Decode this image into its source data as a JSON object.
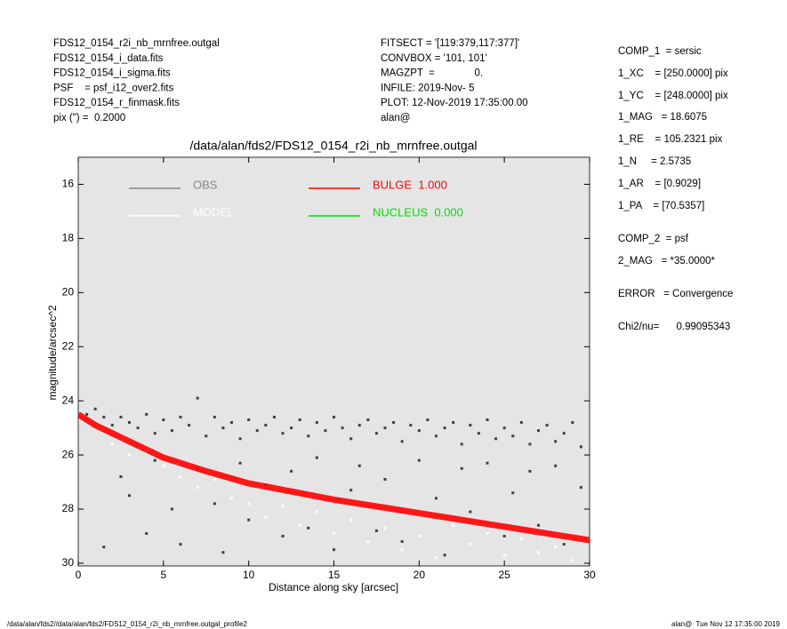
{
  "header": {
    "left": [
      "FDS12_0154_r2i_nb_mrnfree.outgal",
      "FDS12_0154_i_data.fits",
      "FDS12_0154_i_sigma.fits",
      "PSF    = psf_i12_over2.fits",
      "FDS12_0154_r_finmask.fits",
      "pix (\") =  0.2000"
    ],
    "middle": [
      "FITSECT = '[119:379,117:377]'",
      "CONVBOX = '101, 101'",
      "MAGZPT  =              0.",
      "INFILE: 2019-Nov- 5",
      "PLOT: 12-Nov-2019 17:35:00.00",
      "alan@"
    ],
    "right": [
      "COMP_1  = sersic",
      "1_XC    = [250.0000] pix",
      "1_YC    = [248.0000] pix",
      "1_MAG   = 18.6075",
      "1_RE    = 105.2321 pix",
      "1_N     = 2.5735",
      "1_AR    = [0.9029]",
      "1_PA    = [70.5357]",
      "COMP_2  = psf",
      "2_MAG   = *35.0000*",
      "ERROR   = Convergence",
      "Chi2/nu=      0.99095343"
    ]
  },
  "chart_data": {
    "type": "scatter",
    "title": "/data/alan/fds2/FDS12_0154_r2i_nb_mrnfree.outgal",
    "x_label": "Distance along sky [arcsec]",
    "y_label": "magnitude/arcsec^2",
    "background": "#e5e5e5",
    "legend": "upper left",
    "xlim": [
      0,
      30
    ],
    "ylim": [
      30.1,
      15.0
    ],
    "xticks": [
      0,
      5,
      10,
      15,
      20,
      25,
      30
    ],
    "yticks": [
      16,
      18,
      20,
      22,
      24,
      26,
      28,
      30
    ],
    "series": [
      {
        "name": "OBS",
        "color": "#888888",
        "marker_color": "#404040",
        "style": "points",
        "x": [
          0.5,
          1,
          1.5,
          2,
          2.5,
          3,
          3.5,
          4,
          4.5,
          5,
          5.5,
          6,
          6.5,
          7,
          7.5,
          8,
          8.5,
          9,
          9.5,
          10,
          10.5,
          11,
          11.5,
          12,
          12.5,
          13,
          13.5,
          14,
          14.5,
          15,
          15.5,
          16,
          16.5,
          17,
          17.5,
          18,
          18.5,
          19,
          19.5,
          20,
          20.5,
          21,
          21.5,
          22,
          22.5,
          23,
          23.5,
          24,
          24.5,
          25,
          25.5,
          26,
          26.5,
          27,
          27.5,
          28,
          28.5,
          29,
          29.5,
          1.5,
          2.5,
          3,
          4,
          4.5,
          5.5,
          6,
          7,
          8,
          8.5,
          9.5,
          10,
          11,
          12,
          12.5,
          13.5,
          14,
          15,
          16,
          16.5,
          17.5,
          18,
          19,
          20,
          21,
          21.5,
          22.5,
          23,
          24,
          25,
          25.5,
          26.5,
          27,
          28,
          28.5,
          29.5
        ],
        "y": [
          24.5,
          24.3,
          24.6,
          24.9,
          24.6,
          24.8,
          25.0,
          24.5,
          25.2,
          24.7,
          25.1,
          24.6,
          24.9,
          23.9,
          25.3,
          24.6,
          25.0,
          24.8,
          25.4,
          24.7,
          25.1,
          24.9,
          24.6,
          25.2,
          25.0,
          24.7,
          25.3,
          24.8,
          25.1,
          24.6,
          25.0,
          25.4,
          24.9,
          24.7,
          25.2,
          25.0,
          24.8,
          25.5,
          24.9,
          25.1,
          24.7,
          25.3,
          25.0,
          24.8,
          25.6,
          24.9,
          25.2,
          24.7,
          25.4,
          25.0,
          25.3,
          24.8,
          25.6,
          25.1,
          24.9,
          25.5,
          25.2,
          24.8,
          25.7,
          29.4,
          26.8,
          27.5,
          28.9,
          26.2,
          28.0,
          29.3,
          26.5,
          27.8,
          29.6,
          26.3,
          28.4,
          27.1,
          29.0,
          26.6,
          28.7,
          26.1,
          29.5,
          27.3,
          26.4,
          28.8,
          26.9,
          29.2,
          26.2,
          27.6,
          29.7,
          26.5,
          28.1,
          26.3,
          29.0,
          27.4,
          26.6,
          28.6,
          26.4,
          29.3,
          27.2
        ]
      },
      {
        "name": "MODEL",
        "color": "#ffffff",
        "style": "points",
        "x": [
          2,
          3,
          4,
          5,
          6,
          7,
          8,
          9,
          10,
          11,
          12,
          13,
          14,
          15,
          16,
          17,
          18,
          19,
          20,
          21,
          22,
          23,
          24,
          25,
          26,
          27,
          28,
          29
        ],
        "y": [
          25.6,
          26.0,
          25.9,
          26.4,
          26.8,
          27.2,
          26.9,
          27.6,
          27.8,
          28.3,
          27.9,
          28.6,
          28.1,
          28.9,
          28.4,
          29.2,
          28.7,
          29.5,
          29.0,
          29.8,
          28.6,
          29.3,
          28.9,
          29.7,
          29.1,
          29.6,
          29.4,
          29.9
        ]
      },
      {
        "name": "BULGE  1.000",
        "color": "#ff0000",
        "style": "band",
        "x": [
          0,
          1,
          2,
          3,
          5,
          7.5,
          10,
          12.5,
          15,
          17.5,
          20,
          22.5,
          25,
          27.5,
          30
        ],
        "y": [
          24.5,
          24.9,
          25.2,
          25.5,
          26.1,
          26.6,
          27.05,
          27.35,
          27.65,
          27.9,
          28.15,
          28.4,
          28.65,
          28.9,
          29.15
        ]
      },
      {
        "name": "NUCLEUS  0.000",
        "color": "#00dd00",
        "style": "band",
        "x": [],
        "y": []
      }
    ]
  },
  "footer": {
    "left": "/data/alan/fds2//data/alan/fds2/FDS12_0154_r2i_nb_mrnfree.outgal_profile2",
    "right": "alan@  Tue Nov 12 17:35:00 2019"
  }
}
